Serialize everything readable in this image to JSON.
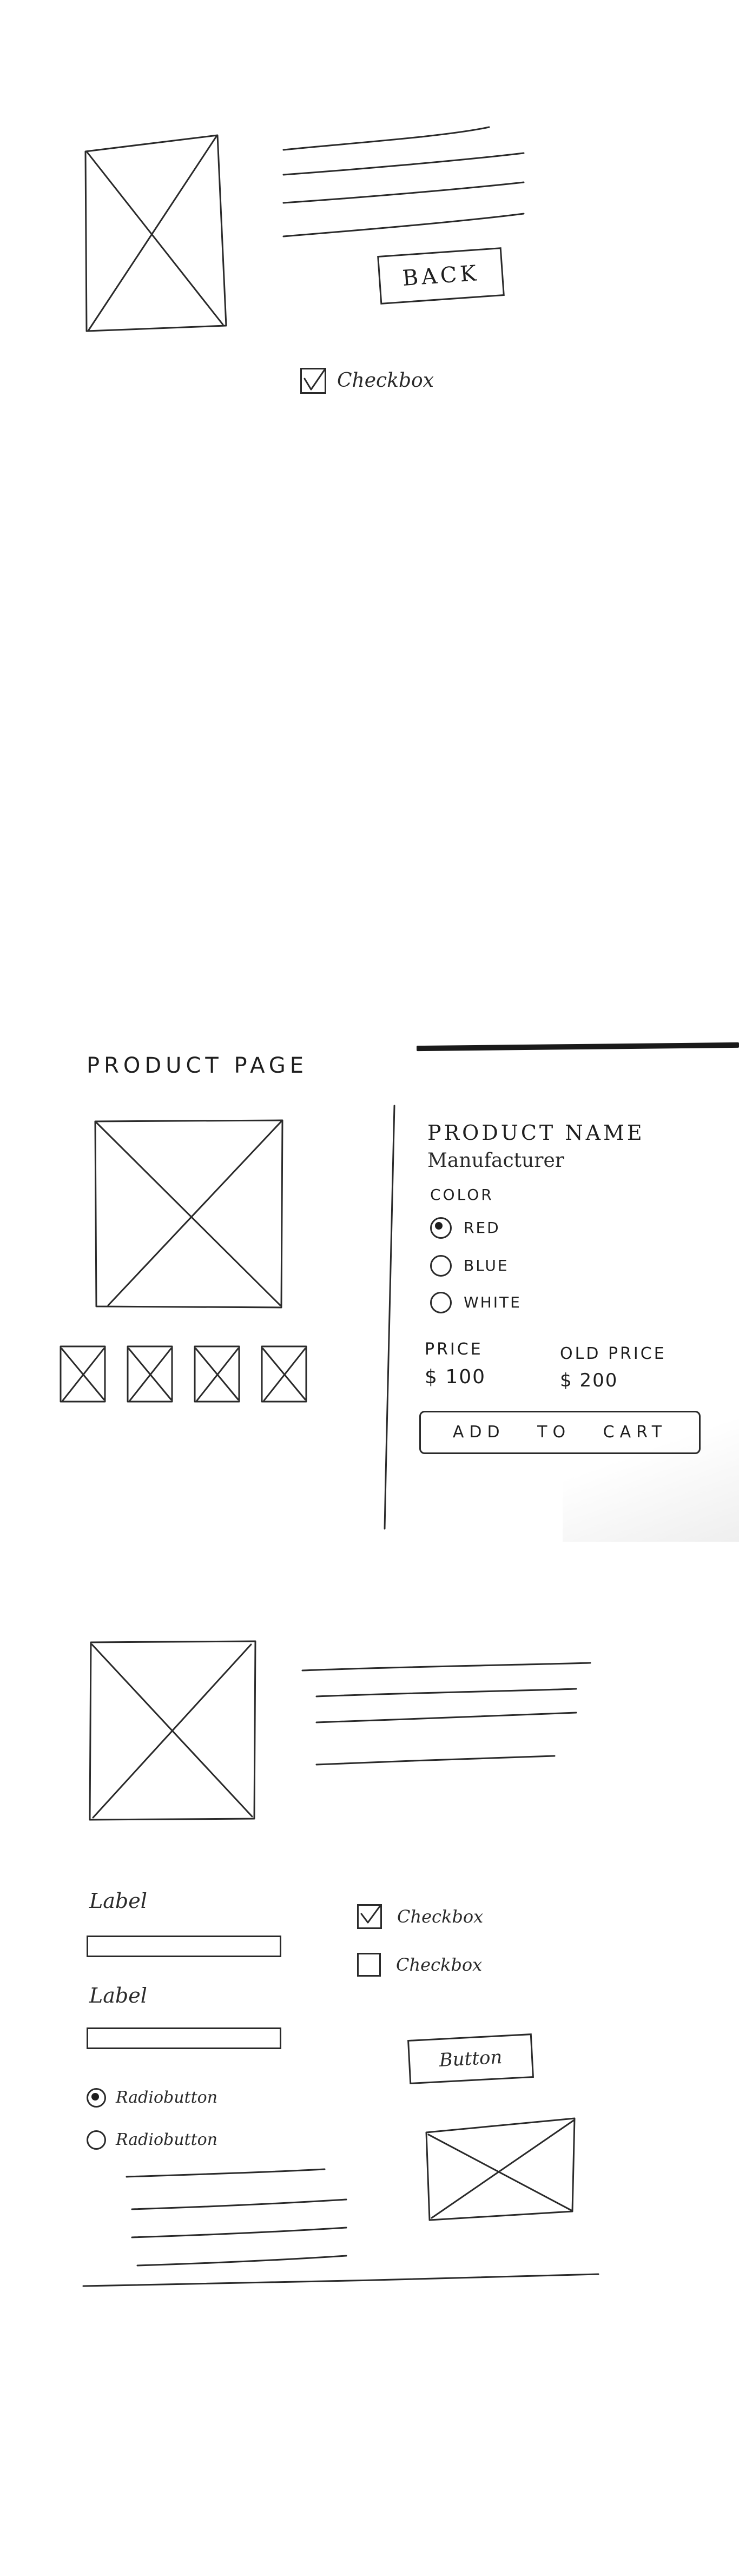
{
  "sketch1": {
    "back_label": "BACK",
    "checkbox_label": "Checkbox",
    "checkbox_checked": true
  },
  "product_page": {
    "page_title": "PRODUCT PAGE",
    "product_name": "PRODUCT NAME",
    "manufacturer": "Manufacturer",
    "color_heading": "COLOR",
    "color_options": [
      {
        "label": "RED",
        "selected": true
      },
      {
        "label": "BLUE",
        "selected": false
      },
      {
        "label": "WHITE",
        "selected": false
      }
    ],
    "price_heading": "PRICE",
    "price_value": "$ 100",
    "old_price_heading": "OLD PRICE",
    "old_price_value": "$ 200",
    "add_to_cart_label": "ADD TO CART",
    "thumbnail_count": 4
  },
  "sketch3": {
    "label_1": "Label",
    "label_2": "Label",
    "checkbox_1_label": "Checkbox",
    "checkbox_1_checked": true,
    "checkbox_2_label": "Checkbox",
    "checkbox_2_checked": false,
    "button_label": "Button",
    "radio_1_label": "Radiobutton",
    "radio_1_selected": true,
    "radio_2_label": "Radiobutton",
    "radio_2_selected": false
  }
}
